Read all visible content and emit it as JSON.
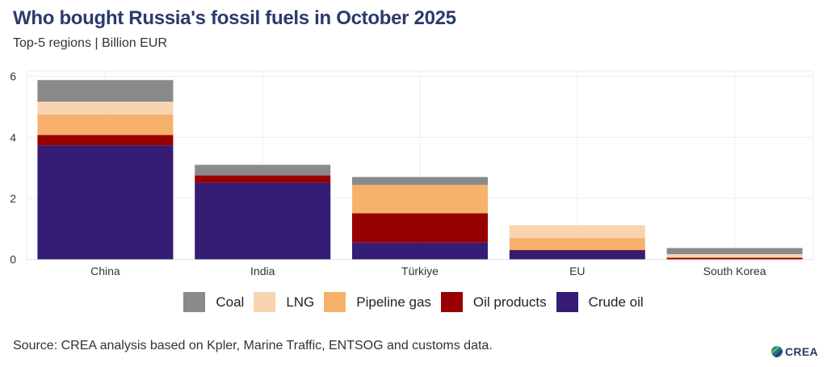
{
  "header": {
    "title": "Who bought Russia's fossil fuels in October 2025",
    "subtitle": "Top-5 regions | Billion EUR"
  },
  "footer": {
    "source": "Source: CREA analysis based on Kpler, Marine Traffic, ENTSOG and customs data.",
    "logo_text": "CREA"
  },
  "colors": {
    "coal": "#8a8a8a",
    "lng": "#f8d5b0",
    "pipeline_gas": "#f6b26b",
    "oil_products": "#990000",
    "crude_oil": "#351c75",
    "title": "#2c3a6b",
    "grid": "#ececec"
  },
  "legend": [
    {
      "key": "coal",
      "label": "Coal",
      "color": "#8a8a8a"
    },
    {
      "key": "lng",
      "label": "LNG",
      "color": "#f8d5b0"
    },
    {
      "key": "pipeline_gas",
      "label": "Pipeline gas",
      "color": "#f6b26b"
    },
    {
      "key": "oil_products",
      "label": "Oil products",
      "color": "#990000"
    },
    {
      "key": "crude_oil",
      "label": "Crude oil",
      "color": "#351c75"
    }
  ],
  "chart_data": {
    "type": "bar",
    "stacked": true,
    "title": "Who bought Russia's fossil fuels in October 2025",
    "subtitle": "Top-5 regions | Billion EUR",
    "xlabel": "",
    "ylabel": "",
    "categories": [
      "China",
      "India",
      "Türkiye",
      "EU",
      "South Korea"
    ],
    "series": [
      {
        "name": "Crude oil",
        "key": "crude_oil",
        "color": "#351c75",
        "values": [
          3.74,
          2.51,
          0.55,
          0.28,
          0.0
        ]
      },
      {
        "name": "Oil products",
        "key": "oil_products",
        "color": "#990000",
        "values": [
          0.34,
          0.24,
          0.96,
          0.03,
          0.05
        ]
      },
      {
        "name": "Pipeline gas",
        "key": "pipeline_gas",
        "color": "#f6b26b",
        "values": [
          0.67,
          0.0,
          0.93,
          0.39,
          0.02
        ]
      },
      {
        "name": "LNG",
        "key": "lng",
        "color": "#f8d5b0",
        "values": [
          0.42,
          0.0,
          0.0,
          0.42,
          0.1
        ]
      },
      {
        "name": "Coal",
        "key": "coal",
        "color": "#8a8a8a",
        "values": [
          0.71,
          0.35,
          0.26,
          0.0,
          0.2
        ]
      }
    ],
    "ylim": [
      0,
      6.15
    ],
    "yticks": [
      0,
      2,
      4,
      6
    ],
    "grid": true,
    "legend_position": "bottom"
  }
}
